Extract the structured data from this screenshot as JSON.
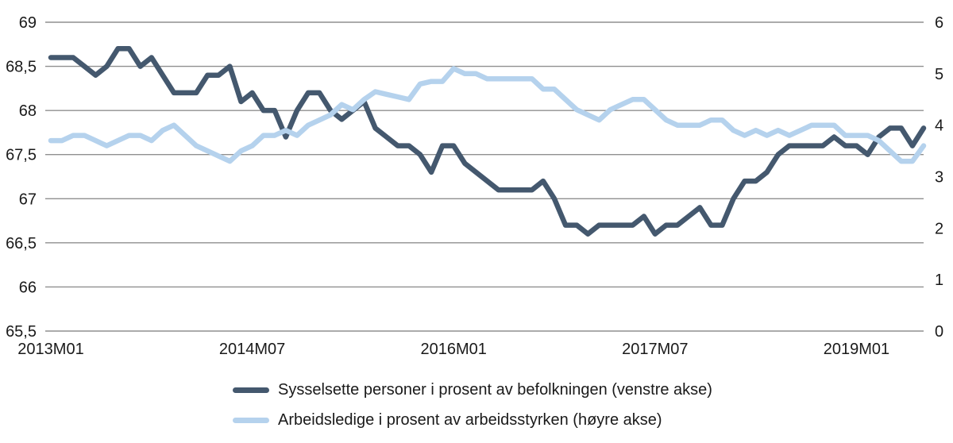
{
  "chart_data": {
    "type": "line",
    "title": "",
    "x_unit": "month",
    "x_start": "2013M01",
    "x_end": "2019M07",
    "grid": true,
    "legend_position": "bottom",
    "grid_color": "#8f8f8f",
    "text_color": "#1a1a1a",
    "background_color": "#ffffff",
    "x_ticks": [
      {
        "label": "2013M01",
        "month_index": 0
      },
      {
        "label": "2014M07",
        "month_index": 18
      },
      {
        "label": "2016M01",
        "month_index": 36
      },
      {
        "label": "2017M07",
        "month_index": 54
      },
      {
        "label": "2019M01",
        "month_index": 72
      }
    ],
    "left_axis": {
      "range": [
        65.5,
        69
      ],
      "tick_values": [
        69,
        68.5,
        68,
        67.5,
        67,
        66.5,
        66,
        65.5
      ],
      "tick_labels": [
        "69",
        "68,5",
        "68",
        "67,5",
        "67",
        "66,5",
        "66",
        "65,5"
      ]
    },
    "right_axis": {
      "range": [
        0,
        6
      ],
      "tick_values": [
        6,
        5,
        4,
        3,
        2,
        1,
        0
      ],
      "tick_labels": [
        "6",
        "5",
        "4",
        "3",
        "2",
        "1",
        "0"
      ]
    },
    "series": [
      {
        "name": "Sysselsette personer i prosent av befolkningen (venstre akse)",
        "axis": "left",
        "color": "#44586e",
        "values": [
          68.6,
          68.6,
          68.6,
          68.5,
          68.4,
          68.5,
          68.7,
          68.7,
          68.5,
          68.6,
          68.4,
          68.2,
          68.2,
          68.2,
          68.4,
          68.4,
          68.5,
          68.1,
          68.2,
          68.0,
          68.0,
          67.7,
          68.0,
          68.2,
          68.2,
          68.0,
          67.9,
          68.0,
          68.1,
          67.8,
          67.7,
          67.6,
          67.6,
          67.5,
          67.3,
          67.6,
          67.6,
          67.4,
          67.3,
          67.2,
          67.1,
          67.1,
          67.1,
          67.1,
          67.2,
          67.0,
          66.7,
          66.7,
          66.6,
          66.7,
          66.7,
          66.7,
          66.7,
          66.8,
          66.6,
          66.7,
          66.7,
          66.8,
          66.9,
          66.7,
          66.7,
          67.0,
          67.2,
          67.2,
          67.3,
          67.5,
          67.6,
          67.6,
          67.6,
          67.6,
          67.7,
          67.6,
          67.6,
          67.5,
          67.7,
          67.8,
          67.8,
          67.6,
          67.8
        ]
      },
      {
        "name": "Arbeidsledige i prosent av arbeidsstyrken (høyre akse)",
        "axis": "right",
        "color": "#b5d2ed",
        "values": [
          3.7,
          3.7,
          3.8,
          3.8,
          3.7,
          3.6,
          3.7,
          3.8,
          3.8,
          3.7,
          3.9,
          4.0,
          3.8,
          3.6,
          3.5,
          3.4,
          3.3,
          3.5,
          3.6,
          3.8,
          3.8,
          3.9,
          3.8,
          4.0,
          4.1,
          4.2,
          4.4,
          4.3,
          4.5,
          4.65,
          4.6,
          4.55,
          4.5,
          4.8,
          4.85,
          4.85,
          5.1,
          5.0,
          5.0,
          4.9,
          4.9,
          4.9,
          4.9,
          4.9,
          4.7,
          4.7,
          4.5,
          4.3,
          4.2,
          4.1,
          4.3,
          4.4,
          4.5,
          4.5,
          4.3,
          4.1,
          4.0,
          4.0,
          4.0,
          4.1,
          4.1,
          3.9,
          3.8,
          3.9,
          3.8,
          3.9,
          3.8,
          3.9,
          4.0,
          4.0,
          4.0,
          3.8,
          3.8,
          3.8,
          3.7,
          3.5,
          3.3,
          3.3,
          3.6
        ]
      }
    ]
  }
}
